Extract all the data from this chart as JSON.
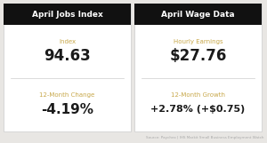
{
  "left_title": "April Jobs Index",
  "right_title": "April Wage Data",
  "left_label1": "Index",
  "left_value1": "94.63",
  "left_label2": "12-Month Change",
  "left_value2": "-4.19%",
  "right_label1": "Hourly Earnings",
  "right_value1": "$27.76",
  "right_label2": "12-Month Growth",
  "right_value2": "+2.78% (+$0.75)",
  "source_text": "Source: Paychex | IHS Markit Small Business Employment Watch",
  "bg_color": "#e8e6e3",
  "panel_bg": "#ffffff",
  "header_bg": "#111111",
  "header_text_color": "#ffffff",
  "label_color": "#c8a84b",
  "value_color": "#1a1a1a",
  "source_color": "#aaaaaa",
  "divider_color": "#cccccc"
}
